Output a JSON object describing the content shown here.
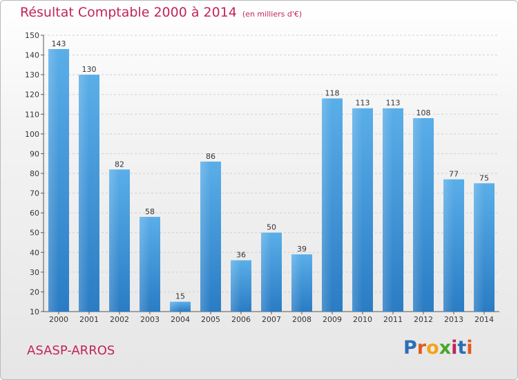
{
  "header": {
    "title": "Résultat Comptable 2000 à 2014",
    "subtitle": "(en milliers d'€)"
  },
  "footer": {
    "place": "ASASP-ARROS",
    "brand_letters": [
      "P",
      "r",
      "o",
      "x",
      "i",
      "t",
      "i"
    ]
  },
  "colors": {
    "accent": "#c0245c",
    "bar_light": "#5aaee8",
    "bar_dark": "#2a7cc4",
    "grid": "#d0d0d0"
  },
  "chart_data": {
    "type": "bar",
    "title": "Résultat Comptable 2000 à 2014",
    "subtitle": "(en milliers d'€)",
    "xlabel": "",
    "ylabel": "",
    "categories": [
      "2000",
      "2001",
      "2002",
      "2003",
      "2004",
      "2005",
      "2006",
      "2007",
      "2008",
      "2009",
      "2010",
      "2011",
      "2012",
      "2013",
      "2014"
    ],
    "values": [
      143,
      130,
      82,
      58,
      15,
      86,
      36,
      50,
      39,
      118,
      113,
      113,
      108,
      77,
      75
    ],
    "ylim": [
      10,
      150
    ],
    "yticks": [
      10,
      20,
      30,
      40,
      50,
      60,
      70,
      80,
      90,
      100,
      110,
      120,
      130,
      140,
      150
    ],
    "grid": true,
    "legend": "none"
  }
}
